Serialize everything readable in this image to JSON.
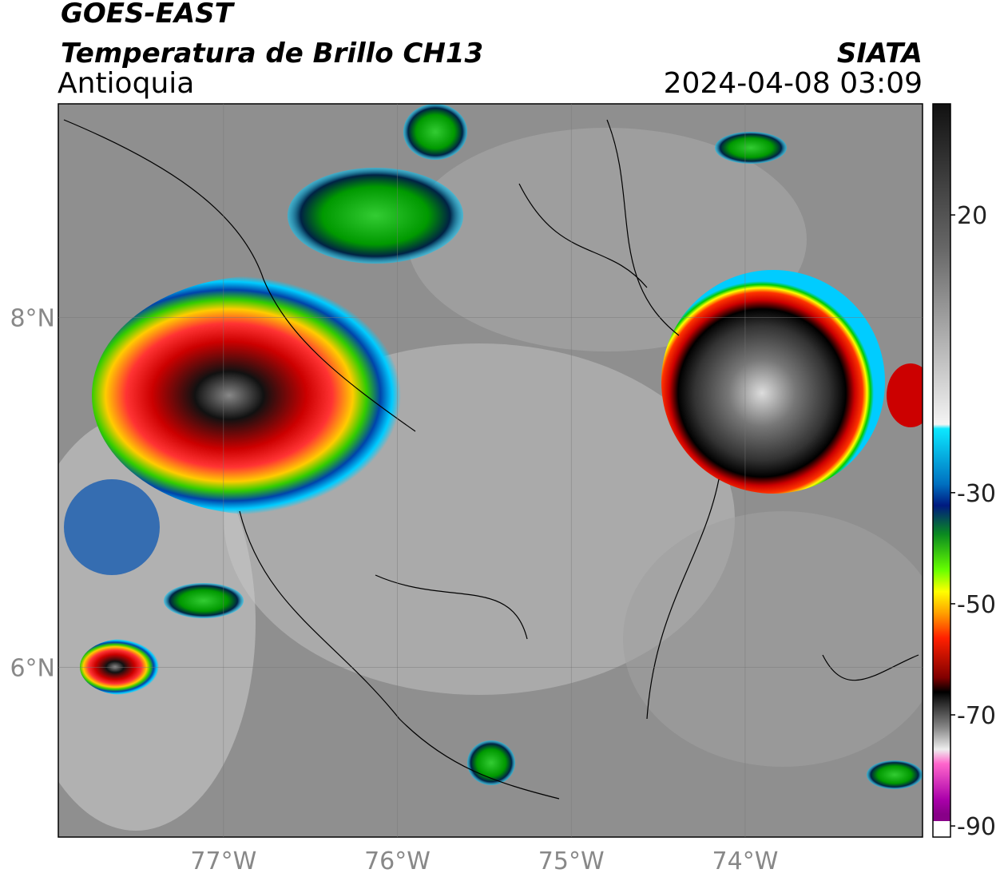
{
  "header": {
    "title": "GOES-EAST",
    "subtitle": "Temperatura de Brillo CH13",
    "region": "Antioquia",
    "source": "SIATA",
    "datetime": "2024-04-08 03:09"
  },
  "map": {
    "lonlim": [
      -77.95,
      -72.98
    ],
    "latlim": [
      5.03,
      9.22
    ],
    "lonticks": [
      {
        "value": -77,
        "label": "77°W"
      },
      {
        "value": -76,
        "label": "76°W"
      },
      {
        "value": -75,
        "label": "75°W"
      },
      {
        "value": -74,
        "label": "74°W"
      }
    ],
    "latticks": [
      {
        "value": 8,
        "label": "8°N"
      },
      {
        "value": 6,
        "label": "6°N"
      }
    ]
  },
  "colorbar": {
    "lim": [
      -92,
      40
    ],
    "ticks": [
      20,
      -30,
      -50,
      -70,
      -90
    ]
  }
}
